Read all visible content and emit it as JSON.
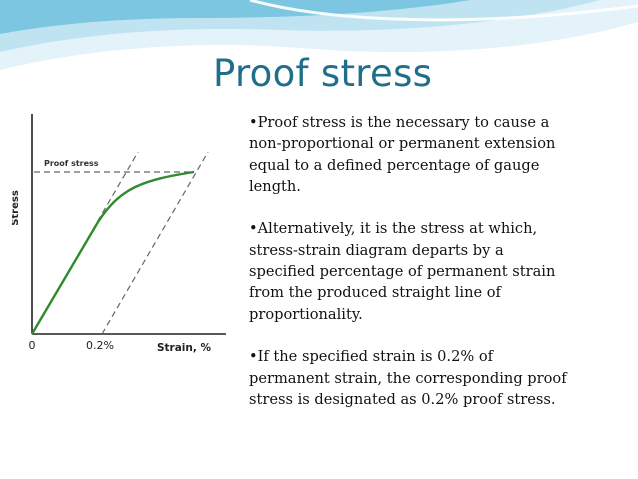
{
  "slide": {
    "title": "Proof stress",
    "paragraphs": [
      "•Proof stress is the necessary to cause a non-proportional or permanent extension equal to a defined percentage of gauge length.",
      "•Alternatively, it is the stress at which, stress-strain diagram departs by a specified percentage of permanent strain from the produced straight line of proportionality.",
      "•If the specified strain is 0.2% of permanent strain, the corresponding proof stress is designated as 0.2% proof stress."
    ]
  },
  "diagram": {
    "y_axis_label": "Stress",
    "x_axis_label": "Strain, %",
    "origin_label": "0",
    "offset_label": "0.2%",
    "proof_stress_label": "Proof stress"
  },
  "colors": {
    "title": "#1f6f8b",
    "curve": "#2e8b2e",
    "wave_light": "#cdeaf5",
    "wave_dark": "#6fc0de"
  }
}
